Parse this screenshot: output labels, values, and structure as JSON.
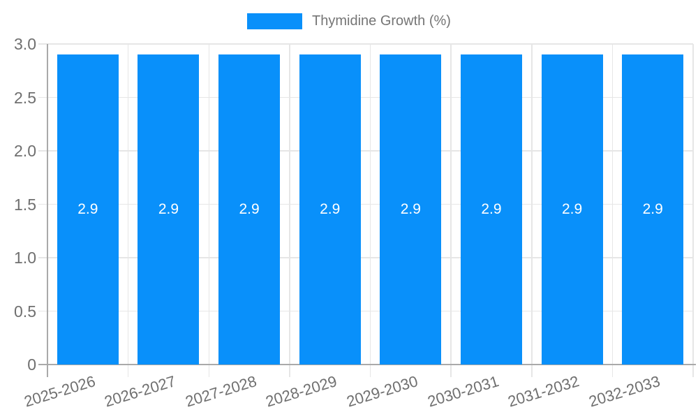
{
  "legend": {
    "label": "Thymidine Growth (%)"
  },
  "colors": {
    "bar": "#0990fa",
    "grid": "#e6e6e6",
    "axis": "#a9a9a9",
    "tick_label": "#6f6f6f",
    "legend_text": "#757575",
    "bar_value_label": "#ffffff",
    "background": "#ffffff"
  },
  "chart_data": {
    "type": "bar",
    "title": "",
    "legend": [
      "Thymidine Growth (%)"
    ],
    "legend_position": "top-center",
    "categories": [
      "2025-2026",
      "2026-2027",
      "2027-2028",
      "2028-2029",
      "2029-2030",
      "2030-2031",
      "2031-2032",
      "2032-2033"
    ],
    "series": [
      {
        "name": "Thymidine Growth (%)",
        "values": [
          2.9,
          2.9,
          2.9,
          2.9,
          2.9,
          2.9,
          2.9,
          2.9
        ]
      }
    ],
    "value_labels": [
      "2.9",
      "2.9",
      "2.9",
      "2.9",
      "2.9",
      "2.9",
      "2.9",
      "2.9"
    ],
    "xlabel": "",
    "ylabel": "",
    "ylim": [
      0,
      3
    ],
    "yticks": [
      0,
      0.5,
      1.0,
      1.5,
      2.0,
      2.5,
      3.0
    ],
    "ytick_labels": [
      "0",
      "0.5",
      "1.0",
      "1.5",
      "2.0",
      "2.5",
      "3.0"
    ],
    "grid": true,
    "x_tick_label_rotation_deg": -17
  }
}
